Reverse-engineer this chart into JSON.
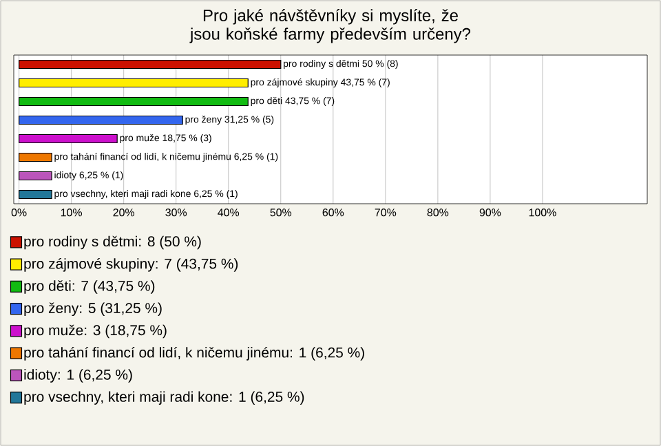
{
  "chart_data": {
    "type": "bar",
    "orientation": "horizontal",
    "title": "Pro jaké návštěvníky si myslíte, že jsou koňské farmy především určeny?",
    "categories": [
      null,
      null,
      null,
      null,
      null,
      null,
      null,
      null
    ],
    "series": [
      {
        "name": "pro rodiny s dětmi: 8 (50 %)",
        "color": "#cc1100",
        "values": [
          50,
          null,
          null,
          null,
          null,
          null,
          null,
          null
        ],
        "value_labels": [
          "pro rodiny s dětmi 50 % (8)",
          null,
          null,
          null,
          null,
          null,
          null,
          null
        ]
      },
      {
        "name": "pro zájmové skupiny: 7 (43,75 %)",
        "color": "#ffee00",
        "values": [
          null,
          43.75,
          null,
          null,
          null,
          null,
          null,
          null
        ],
        "value_labels": [
          null,
          "pro zájmové skupiny 43,75 % (7)",
          null,
          null,
          null,
          null,
          null,
          null
        ]
      },
      {
        "name": "pro děti: 7 (43,75 %)",
        "color": "#11bb11",
        "values": [
          null,
          null,
          43.75,
          null,
          null,
          null,
          null,
          null
        ],
        "value_labels": [
          null,
          null,
          "pro děti 43,75 % (7)",
          null,
          null,
          null,
          null,
          null
        ]
      },
      {
        "name": "pro ženy: 5 (31,25 %)",
        "color": "#3366ee",
        "values": [
          null,
          null,
          null,
          31.25,
          null,
          null,
          null,
          null
        ],
        "value_labels": [
          null,
          null,
          null,
          "pro ženy 31,25 % (5)",
          null,
          null,
          null,
          null
        ]
      },
      {
        "name": "pro muže: 3 (18,75 %)",
        "color": "#cc11cc",
        "values": [
          null,
          null,
          null,
          null,
          18.75,
          null,
          null,
          null
        ],
        "value_labels": [
          null,
          null,
          null,
          null,
          "pro muže 18,75 % (3)",
          null,
          null,
          null
        ]
      },
      {
        "name": "pro tahání financí od lidí, k ničemu jinému: 1 (6,25 %)",
        "color": "#ee7700",
        "values": [
          null,
          null,
          null,
          null,
          null,
          6.25,
          null,
          null
        ],
        "value_labels": [
          null,
          null,
          null,
          null,
          null,
          "pro tahání financí od lidí, k ničemu jinému 6,25 % (1)",
          null,
          null
        ]
      },
      {
        "name": "idioty: 1 (6,25 %)",
        "color": "#bb55bb",
        "values": [
          null,
          null,
          null,
          null,
          null,
          null,
          6.25,
          null
        ],
        "value_labels": [
          null,
          null,
          null,
          null,
          null,
          null,
          "idioty 6,25 % (1)",
          null
        ]
      },
      {
        "name": "pro vsechny, kteri maji radi kone: 1 (6,25 %)",
        "color": "#227799",
        "values": [
          null,
          null,
          null,
          null,
          null,
          null,
          null,
          6.25
        ],
        "value_labels": [
          null,
          null,
          null,
          null,
          null,
          null,
          null,
          "pro vsechny, kteri maji radi kone 6,25 % (1)"
        ]
      }
    ],
    "legend": "bottom",
    "grid": "x",
    "xlim": [
      -1,
      120
    ],
    "xticks": [
      {
        "value": 0,
        "label": "0%"
      },
      {
        "value": 10,
        "label": "10%"
      },
      {
        "value": 20,
        "label": "20%"
      },
      {
        "value": 30,
        "label": "30%"
      },
      {
        "value": 40,
        "label": "40%"
      },
      {
        "value": 50,
        "label": "50%"
      },
      {
        "value": 60,
        "label": "60%"
      },
      {
        "value": 70,
        "label": "70%"
      },
      {
        "value": 80,
        "label": "80%"
      },
      {
        "value": 90,
        "label": "90%"
      },
      {
        "value": 100,
        "label": "100%"
      }
    ]
  }
}
